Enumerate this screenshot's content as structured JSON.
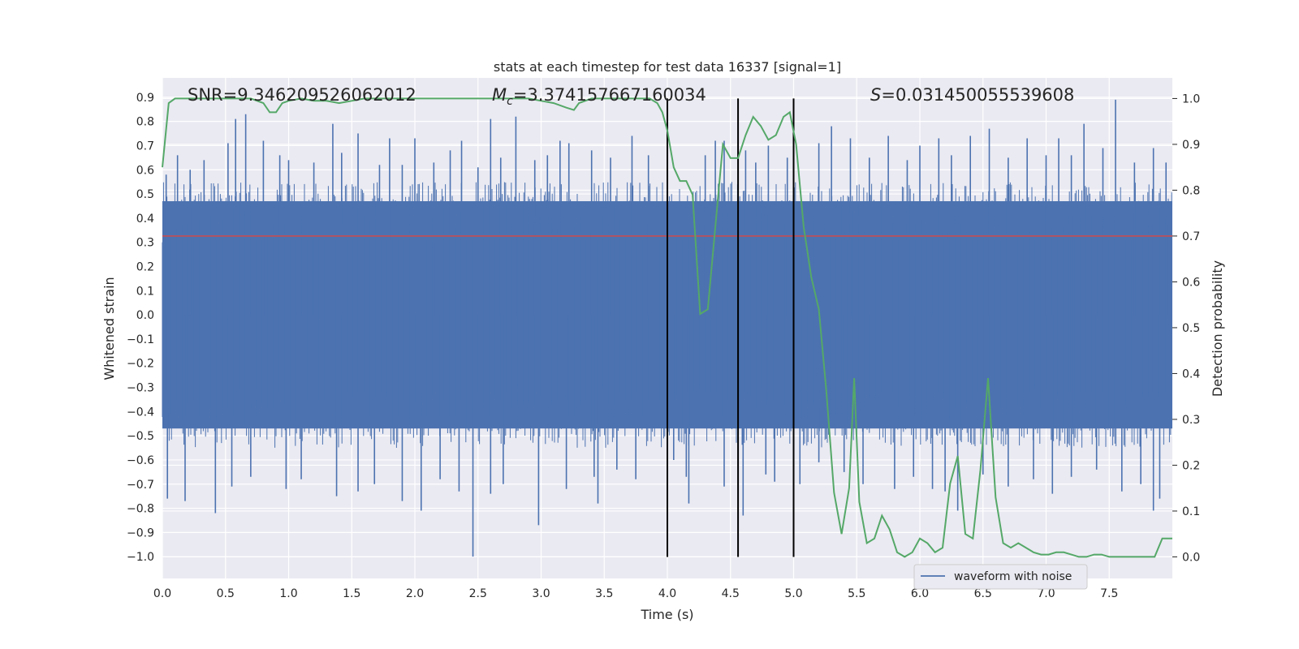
{
  "chart_data": {
    "type": "line",
    "title": "stats at each timestep for test data 16337 [signal=1]",
    "xlabel": "Time (s)",
    "ylabel_left": "Whitened strain",
    "ylabel_right": "Detection probability",
    "xlim": [
      0.0,
      8.0
    ],
    "ylim_left": [
      -1.09,
      0.98
    ],
    "ylim_right": [
      -0.047,
      1.045
    ],
    "x_ticks": [
      "0.0",
      "0.5",
      "1.0",
      "1.5",
      "2.0",
      "2.5",
      "3.0",
      "3.5",
      "4.0",
      "4.5",
      "5.0",
      "5.5",
      "6.0",
      "6.5",
      "7.0",
      "7.5"
    ],
    "y_ticks_left": [
      "0.9",
      "0.8",
      "0.7",
      "0.6",
      "0.5",
      "0.4",
      "0.3",
      "0.2",
      "0.1",
      "0.0",
      "−0.1",
      "−0.2",
      "−0.3",
      "−0.4",
      "−0.5",
      "−0.6",
      "−0.7",
      "−0.8",
      "−0.9",
      "−1.0"
    ],
    "y_ticks_right": [
      "1.0",
      "0.9",
      "0.8",
      "0.7",
      "0.6",
      "0.5",
      "0.4",
      "0.3",
      "0.2",
      "0.1",
      "0.0"
    ],
    "annotations": {
      "snr": "SNR=9.346209526062012",
      "mc_symbol": "M",
      "mc_sub": "c",
      "mc_value": "=3.374157667160034",
      "s_symbol": "S",
      "s_value": "=0.031450055539608"
    },
    "threshold": {
      "y": 0.7,
      "color": "#c44e52"
    },
    "vertical_lines": [
      4.0,
      4.56,
      5.0
    ],
    "series": [
      {
        "name": "waveform with noise",
        "axis": "left",
        "color": "#4c72b0",
        "envelope_upper": 0.47,
        "envelope_lower": -0.47,
        "spikes": [
          [
            0.03,
            0.58
          ],
          [
            0.12,
            0.66
          ],
          [
            0.22,
            0.6
          ],
          [
            0.33,
            0.64
          ],
          [
            0.52,
            0.71
          ],
          [
            0.58,
            0.81
          ],
          [
            0.66,
            0.83
          ],
          [
            0.8,
            0.72
          ],
          [
            0.93,
            0.66
          ],
          [
            1.0,
            0.64
          ],
          [
            1.2,
            0.63
          ],
          [
            1.35,
            0.79
          ],
          [
            1.42,
            0.67
          ],
          [
            1.55,
            0.75
          ],
          [
            1.72,
            0.62
          ],
          [
            1.8,
            0.73
          ],
          [
            1.9,
            0.62
          ],
          [
            2.0,
            0.73
          ],
          [
            2.15,
            0.63
          ],
          [
            2.28,
            0.68
          ],
          [
            2.37,
            0.72
          ],
          [
            2.5,
            0.61
          ],
          [
            2.6,
            0.81
          ],
          [
            2.68,
            0.65
          ],
          [
            2.8,
            0.82
          ],
          [
            2.95,
            0.64
          ],
          [
            3.05,
            0.66
          ],
          [
            3.15,
            0.72
          ],
          [
            3.22,
            0.71
          ],
          [
            3.4,
            0.68
          ],
          [
            3.55,
            0.65
          ],
          [
            3.72,
            0.74
          ],
          [
            3.85,
            0.66
          ],
          [
            4.3,
            0.66
          ],
          [
            4.38,
            0.72
          ],
          [
            4.45,
            0.72
          ],
          [
            4.62,
            0.68
          ],
          [
            4.7,
            0.63
          ],
          [
            4.8,
            0.7
          ],
          [
            4.95,
            0.65
          ],
          [
            5.2,
            0.71
          ],
          [
            5.3,
            0.78
          ],
          [
            5.45,
            0.73
          ],
          [
            5.6,
            0.65
          ],
          [
            5.75,
            0.74
          ],
          [
            5.9,
            0.64
          ],
          [
            6.0,
            0.7
          ],
          [
            6.15,
            0.73
          ],
          [
            6.25,
            0.66
          ],
          [
            6.4,
            0.74
          ],
          [
            6.55,
            0.77
          ],
          [
            6.7,
            0.65
          ],
          [
            6.85,
            0.73
          ],
          [
            7.0,
            0.66
          ],
          [
            7.1,
            0.73
          ],
          [
            7.2,
            0.66
          ],
          [
            7.3,
            0.79
          ],
          [
            7.45,
            0.69
          ],
          [
            7.55,
            0.89
          ],
          [
            7.7,
            0.63
          ],
          [
            7.85,
            0.69
          ],
          [
            7.95,
            0.63
          ],
          [
            0.04,
            -0.76
          ],
          [
            0.18,
            -0.77
          ],
          [
            0.42,
            -0.82
          ],
          [
            0.55,
            -0.71
          ],
          [
            0.7,
            -0.67
          ],
          [
            0.98,
            -0.72
          ],
          [
            1.1,
            -0.68
          ],
          [
            1.38,
            -0.75
          ],
          [
            1.55,
            -0.73
          ],
          [
            1.68,
            -0.7
          ],
          [
            1.9,
            -0.77
          ],
          [
            2.05,
            -0.81
          ],
          [
            2.2,
            -0.68
          ],
          [
            2.35,
            -0.73
          ],
          [
            2.46,
            -1.0
          ],
          [
            2.6,
            -0.74
          ],
          [
            2.7,
            -0.7
          ],
          [
            2.98,
            -0.87
          ],
          [
            3.2,
            -0.72
          ],
          [
            3.42,
            -0.67
          ],
          [
            3.45,
            -0.78
          ],
          [
            3.6,
            -0.64
          ],
          [
            3.75,
            -0.68
          ],
          [
            4.05,
            -0.6
          ],
          [
            4.15,
            -0.67
          ],
          [
            4.17,
            -0.78
          ],
          [
            4.45,
            -0.71
          ],
          [
            4.6,
            -0.83
          ],
          [
            4.78,
            -0.66
          ],
          [
            4.85,
            -0.69
          ],
          [
            5.05,
            -0.7
          ],
          [
            5.2,
            -0.61
          ],
          [
            5.4,
            -0.65
          ],
          [
            5.55,
            -0.7
          ],
          [
            5.8,
            -0.72
          ],
          [
            5.95,
            -0.67
          ],
          [
            6.1,
            -0.72
          ],
          [
            6.2,
            -0.73
          ],
          [
            6.3,
            -0.81
          ],
          [
            6.5,
            -0.66
          ],
          [
            6.7,
            -0.71
          ],
          [
            6.9,
            -0.68
          ],
          [
            7.05,
            -0.74
          ],
          [
            7.2,
            -0.67
          ],
          [
            7.4,
            -0.64
          ],
          [
            7.6,
            -0.73
          ],
          [
            7.75,
            -0.7
          ],
          [
            7.85,
            -0.81
          ],
          [
            7.9,
            -0.76
          ]
        ]
      },
      {
        "name": "Detection probability",
        "axis": "right",
        "color": "#55a868",
        "x": [
          0.0,
          0.05,
          0.1,
          0.15,
          0.2,
          0.3,
          0.4,
          0.5,
          0.6,
          0.7,
          0.8,
          0.85,
          0.9,
          0.95,
          1.0,
          1.1,
          1.2,
          1.3,
          1.4,
          1.5,
          1.6,
          1.7,
          1.8,
          1.9,
          2.0,
          2.1,
          2.2,
          2.3,
          2.4,
          2.5,
          2.6,
          2.7,
          2.8,
          2.9,
          3.0,
          3.1,
          3.2,
          3.26,
          3.3,
          3.4,
          3.5,
          3.6,
          3.7,
          3.8,
          3.86,
          3.92,
          3.96,
          4.0,
          4.05,
          4.1,
          4.15,
          4.2,
          4.26,
          4.32,
          4.38,
          4.44,
          4.5,
          4.56,
          4.62,
          4.68,
          4.74,
          4.8,
          4.86,
          4.92,
          4.97,
          5.02,
          5.08,
          5.14,
          5.2,
          5.26,
          5.32,
          5.38,
          5.44,
          5.48,
          5.52,
          5.58,
          5.64,
          5.7,
          5.76,
          5.82,
          5.88,
          5.94,
          6.0,
          6.06,
          6.12,
          6.18,
          6.24,
          6.3,
          6.36,
          6.42,
          6.48,
          6.54,
          6.6,
          6.66,
          6.72,
          6.78,
          6.84,
          6.9,
          6.96,
          7.02,
          7.08,
          7.14,
          7.2,
          7.26,
          7.32,
          7.38,
          7.44,
          7.5,
          7.56,
          7.62,
          7.68,
          7.74,
          7.8,
          7.86,
          7.92,
          8.0
        ],
        "y": [
          0.85,
          0.99,
          1.0,
          1.0,
          1.0,
          1.0,
          1.0,
          1.0,
          1.0,
          1.0,
          0.99,
          0.97,
          0.97,
          0.99,
          0.995,
          1.0,
          0.995,
          0.995,
          0.99,
          0.995,
          1.0,
          1.0,
          1.0,
          1.0,
          1.0,
          1.0,
          1.0,
          1.0,
          1.0,
          1.0,
          1.0,
          1.0,
          1.0,
          1.0,
          0.995,
          0.99,
          0.98,
          0.975,
          0.99,
          1.0,
          1.0,
          1.0,
          1.0,
          1.0,
          1.0,
          0.99,
          0.97,
          0.93,
          0.85,
          0.82,
          0.82,
          0.79,
          0.53,
          0.54,
          0.72,
          0.9,
          0.87,
          0.87,
          0.92,
          0.96,
          0.94,
          0.91,
          0.92,
          0.96,
          0.97,
          0.9,
          0.72,
          0.61,
          0.54,
          0.36,
          0.14,
          0.05,
          0.15,
          0.39,
          0.12,
          0.03,
          0.04,
          0.09,
          0.06,
          0.01,
          0.0,
          0.01,
          0.04,
          0.03,
          0.01,
          0.02,
          0.16,
          0.22,
          0.05,
          0.04,
          0.19,
          0.39,
          0.13,
          0.03,
          0.02,
          0.03,
          0.02,
          0.01,
          0.005,
          0.005,
          0.01,
          0.01,
          0.005,
          0.0,
          0.0,
          0.005,
          0.005,
          0.0,
          0.0,
          0.0,
          0.0,
          0.0,
          0.0,
          0.0,
          0.04,
          0.04
        ]
      }
    ],
    "legend": {
      "position": "bottom-right",
      "entries": [
        "waveform with noise"
      ]
    }
  }
}
